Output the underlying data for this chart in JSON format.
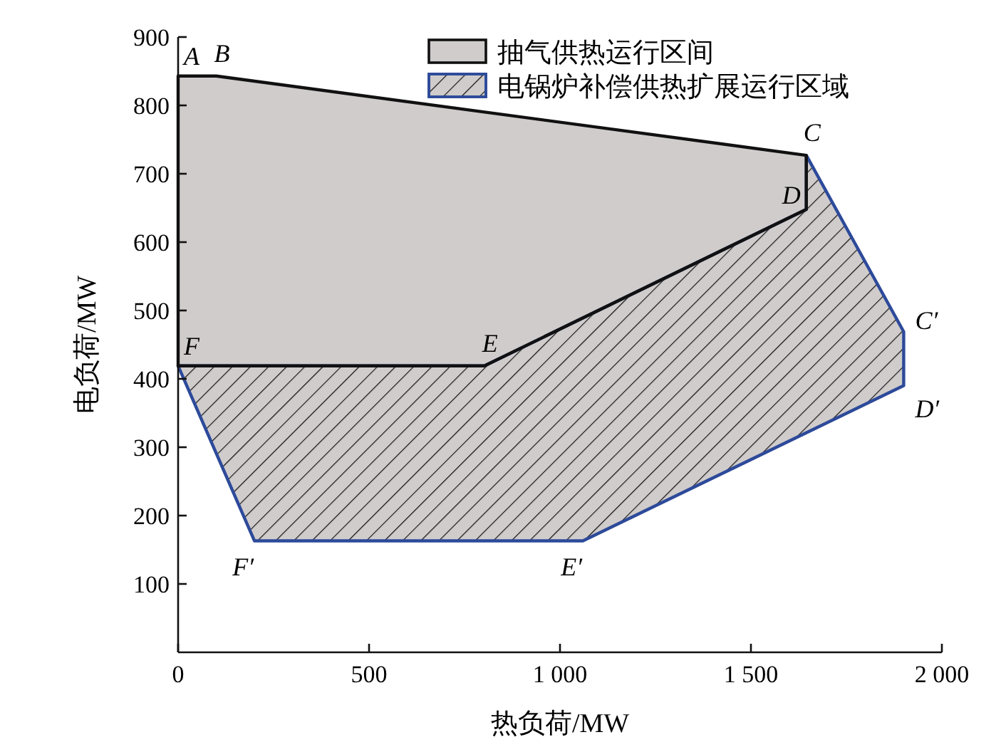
{
  "chart_data": {
    "type": "area",
    "xlabel": "热负荷/MW",
    "ylabel": "电负荷/MW",
    "xlim": [
      0,
      2000
    ],
    "ylim": [
      0,
      900
    ],
    "xticks": [
      0,
      500,
      {
        "value": 1000,
        "label": "1 000"
      },
      {
        "value": 1500,
        "label": "1 500"
      },
      {
        "value": 2000,
        "label": "2 000"
      }
    ],
    "yticks": [
      100,
      200,
      300,
      400,
      500,
      600,
      700,
      800,
      900
    ],
    "legend": "top right",
    "grid": false,
    "series": [
      {
        "name": "抽气供热运行区间",
        "color": "#d0cccb",
        "x": [
          0,
          100,
          1645,
          1645,
          802,
          0
        ],
        "values": [
          843,
          843,
          727,
          648,
          419,
          419
        ]
      },
      {
        "name": "电锅炉补偿供热扩展运行区域",
        "color": "#2d4a9a",
        "x": [
          0,
          802,
          1645,
          1645,
          1900,
          1900,
          1060,
          200
        ],
        "values": [
          419,
          419,
          648,
          727,
          469,
          390,
          163,
          163
        ]
      }
    ],
    "annotations": [
      {
        "text": "A",
        "x": 0,
        "y": 843
      },
      {
        "text": "B",
        "x": 100,
        "y": 843
      },
      {
        "text": "C",
        "x": 1645,
        "y": 727
      },
      {
        "text": "D",
        "x": 1645,
        "y": 648
      },
      {
        "text": "E",
        "x": 802,
        "y": 419
      },
      {
        "text": "F",
        "x": 0,
        "y": 419
      },
      {
        "text": "C′",
        "x": 1900,
        "y": 469
      },
      {
        "text": "D′",
        "x": 1900,
        "y": 390
      },
      {
        "text": "E′",
        "x": 1060,
        "y": 163
      },
      {
        "text": "F′",
        "x": 200,
        "y": 163
      }
    ]
  }
}
